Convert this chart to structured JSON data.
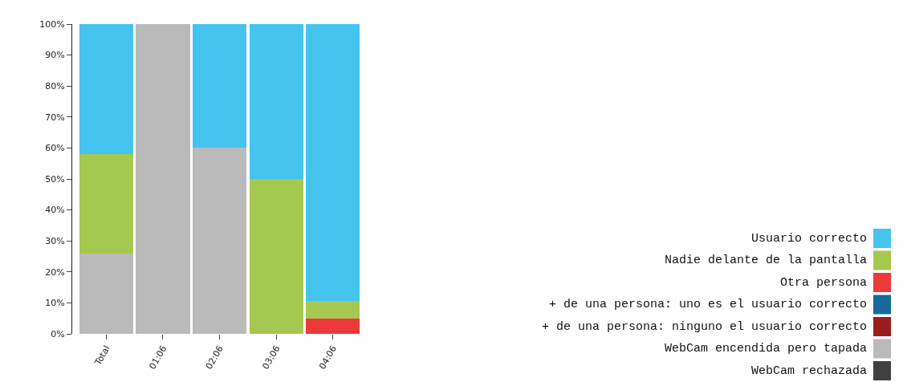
{
  "chart_data": {
    "type": "bar",
    "stacked": true,
    "categories": [
      "Total",
      "01:06",
      "02:06",
      "03:06",
      "04:06"
    ],
    "series": [
      {
        "name": "WebCam rechazada",
        "color": "#404040",
        "values": [
          0,
          0,
          0,
          0,
          0
        ]
      },
      {
        "name": "WebCam encendida pero tapada",
        "color": "#bababa",
        "values": [
          26,
          100,
          60,
          0,
          0
        ]
      },
      {
        "name": "+ de una persona: ninguno el usuario correcto",
        "color": "#9b1c1f",
        "values": [
          0,
          0,
          0,
          0,
          0
        ]
      },
      {
        "name": "+ de una persona: uno es el usuario correcto",
        "color": "#16699a",
        "values": [
          0,
          0,
          0,
          0,
          0
        ]
      },
      {
        "name": "Otra persona",
        "color": "#ec3a3a",
        "values": [
          0,
          0,
          0,
          0,
          5
        ]
      },
      {
        "name": "Nadie delante de la pantalla",
        "color": "#a5c850",
        "values": [
          32,
          0,
          0,
          50,
          5.5
        ]
      },
      {
        "name": "Usuario correcto",
        "color": "#44c4ef",
        "values": [
          42,
          0,
          40,
          50,
          89.5
        ]
      }
    ],
    "ylim": [
      0,
      100
    ],
    "yticks": [
      {
        "value": 0,
        "label": "0%"
      },
      {
        "value": 10,
        "label": "10%"
      },
      {
        "value": 20,
        "label": "20%"
      },
      {
        "value": 30,
        "label": "30%"
      },
      {
        "value": 40,
        "label": "40%"
      },
      {
        "value": 50,
        "label": "50%"
      },
      {
        "value": 60,
        "label": "60%"
      },
      {
        "value": 70,
        "label": "70%"
      },
      {
        "value": 80,
        "label": "80%"
      },
      {
        "value": 90,
        "label": "90%"
      },
      {
        "value": 100,
        "label": "100%"
      }
    ],
    "legend": "bottom right"
  }
}
